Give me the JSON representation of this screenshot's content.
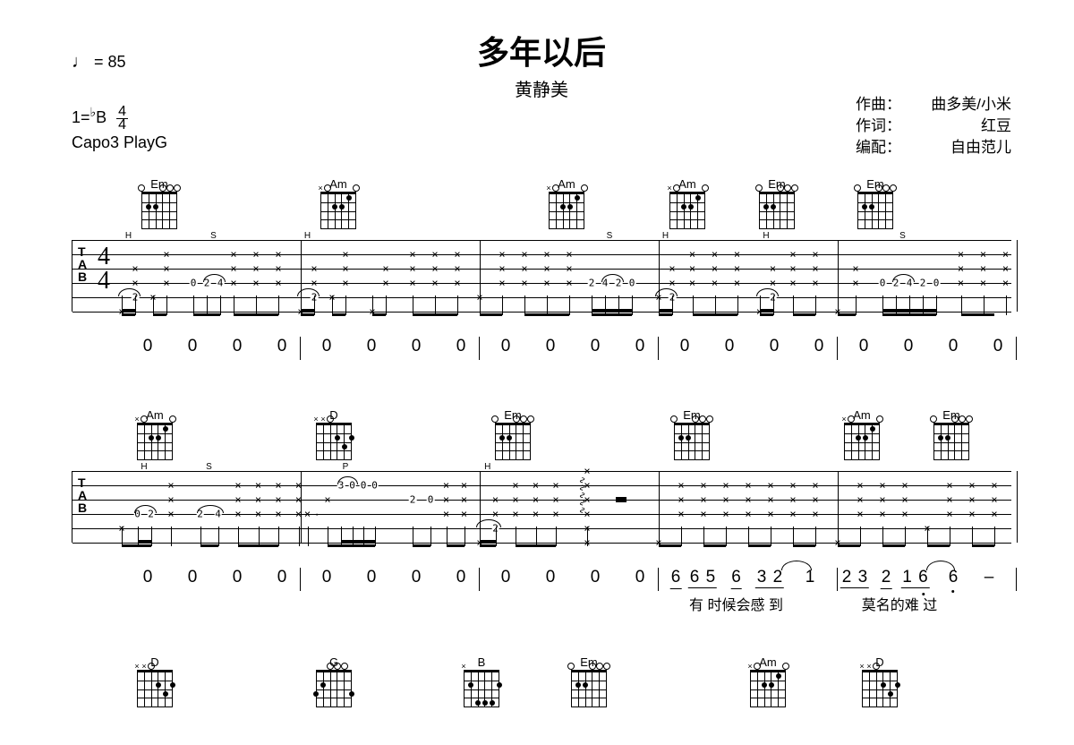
{
  "header": {
    "title": "多年以后",
    "artist": "黄静美",
    "tempo_note": "♩",
    "tempo_eq": "= 85",
    "key": "1=",
    "flat": "♭",
    "keynote": "B",
    "timesig_top": "4",
    "timesig_bot": "4",
    "capo": "Capo3 PlayG"
  },
  "credits": {
    "composer_label": "作曲：",
    "composer": "曲多美/小米",
    "lyricist_label": "作词：",
    "lyricist": "红豆",
    "arranger_label": "编配：",
    "arranger": "自由范儿"
  },
  "chords": {
    "Em": "Em",
    "Am": "Am",
    "D": "D",
    "G": "G",
    "B": "B"
  },
  "jianpu_line1": {
    "zeros": "0   0  0  0"
  },
  "jianpu_line2": {
    "m1": [
      "6",
      "6 5",
      "6",
      "3 2",
      "1"
    ],
    "m2": [
      "2 3",
      "2",
      "1 6",
      "6",
      "–"
    ],
    "lyric1": "有  时候会感  到",
    "lyric2": "莫名的难 过"
  },
  "tab_clef": {
    "t": "T",
    "a": "A",
    "b": "B"
  },
  "bottom_chords": [
    "D",
    "G",
    "B",
    "Em",
    "Am",
    "D"
  ]
}
